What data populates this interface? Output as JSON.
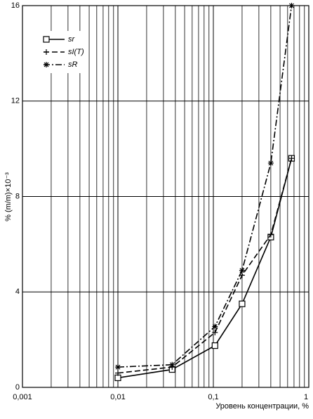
{
  "chart_data": {
    "type": "line",
    "ylabel": "% (m/m)×10⁻³",
    "xlabel": "Уровень концентрации, %",
    "xscale": "log",
    "grid": true,
    "minor_grid": true,
    "legend": "upper left",
    "xlim": [
      0.001,
      1
    ],
    "xticks": [
      {
        "value": 0.001,
        "label": "0,001"
      },
      {
        "value": 0.01,
        "label": "0,01"
      },
      {
        "value": 0.1,
        "label": "0,1"
      },
      1
    ],
    "ylim": [
      0,
      16
    ],
    "yticks": [
      0,
      4,
      8,
      12,
      16
    ],
    "x": [
      0.01,
      0.037,
      0.104,
      0.2,
      0.4,
      0.66
    ],
    "series": [
      {
        "name": "sr",
        "color": "#000000",
        "marker": "square",
        "dash": "solid",
        "values": [
          0.4,
          0.75,
          1.75,
          3.5,
          6.3,
          9.6
        ]
      },
      {
        "name": "sI(T)",
        "color": "#000000",
        "marker": "plus",
        "dash": "dashed",
        "values": [
          0.6,
          0.85,
          2.3,
          4.7,
          6.4,
          9.6
        ]
      },
      {
        "name": "sR",
        "color": "#000000",
        "marker": "asterisk",
        "dash": "dashdot",
        "values": [
          0.85,
          0.95,
          2.55,
          4.9,
          9.4,
          16
        ]
      }
    ]
  }
}
